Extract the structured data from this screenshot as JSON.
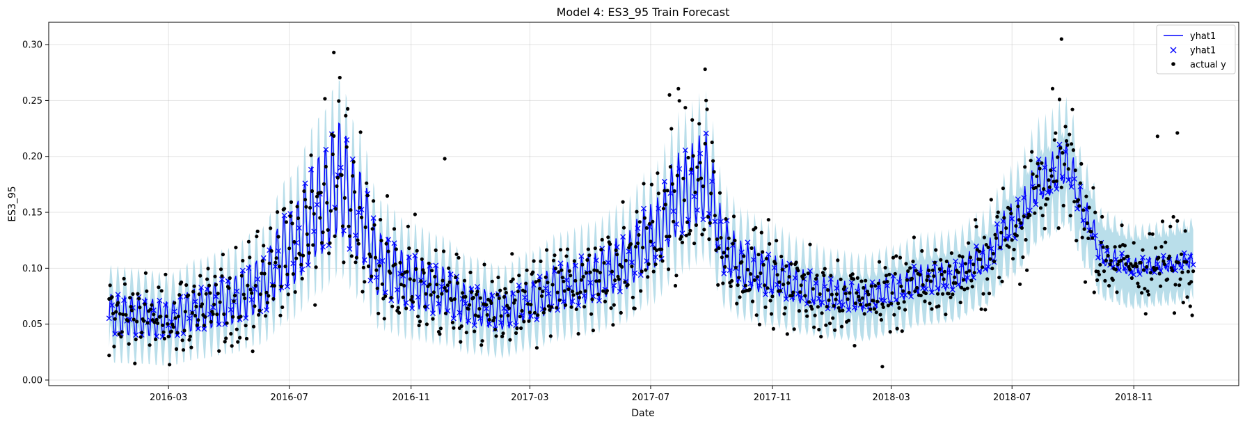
{
  "chart_data": {
    "type": "line",
    "title": "Model 4: ES3_95 Train Forecast",
    "xlabel": "Date",
    "ylabel": "ES3_95",
    "x_range": [
      "2015-11-01",
      "2019-02-15"
    ],
    "ylim": [
      -0.005,
      0.32
    ],
    "x_ticks": [
      "2016-03",
      "2016-07",
      "2016-11",
      "2017-03",
      "2017-07",
      "2017-11",
      "2018-03",
      "2018-07",
      "2018-11"
    ],
    "y_ticks": [
      "0.00",
      "0.05",
      "0.10",
      "0.15",
      "0.20",
      "0.25",
      "0.30"
    ],
    "grid": true,
    "legend_position": "top-right",
    "legend": [
      "yhat1",
      "yhat1",
      "actual y"
    ],
    "series_colors": {
      "yhat1": "#0000ff",
      "band": "#add8e6",
      "actual": "#000000"
    },
    "series": [
      {
        "name": "yhat1",
        "style": "line"
      },
      {
        "name": "yhat1",
        "style": "x-markers"
      },
      {
        "name": "actual y",
        "style": "dots"
      }
    ],
    "forecast_anchors": [
      [
        "2016-01-01",
        0.06
      ],
      [
        "2016-02-01",
        0.058
      ],
      [
        "2016-03-01",
        0.055
      ],
      [
        "2016-04-01",
        0.065
      ],
      [
        "2016-05-01",
        0.072
      ],
      [
        "2016-06-01",
        0.085
      ],
      [
        "2016-07-01",
        0.12
      ],
      [
        "2016-08-01",
        0.16
      ],
      [
        "2016-08-20",
        0.185
      ],
      [
        "2016-09-10",
        0.15
      ],
      [
        "2016-10-01",
        0.105
      ],
      [
        "2016-11-01",
        0.09
      ],
      [
        "2016-12-01",
        0.082
      ],
      [
        "2017-01-01",
        0.068
      ],
      [
        "2017-02-01",
        0.062
      ],
      [
        "2017-03-01",
        0.072
      ],
      [
        "2017-04-01",
        0.085
      ],
      [
        "2017-05-01",
        0.092
      ],
      [
        "2017-06-01",
        0.105
      ],
      [
        "2017-07-01",
        0.13
      ],
      [
        "2017-08-01",
        0.17
      ],
      [
        "2017-08-25",
        0.185
      ],
      [
        "2017-09-15",
        0.12
      ],
      [
        "2017-10-01",
        0.105
      ],
      [
        "2017-11-01",
        0.095
      ],
      [
        "2017-12-01",
        0.085
      ],
      [
        "2018-01-01",
        0.078
      ],
      [
        "2018-02-01",
        0.075
      ],
      [
        "2018-03-01",
        0.082
      ],
      [
        "2018-04-01",
        0.092
      ],
      [
        "2018-05-01",
        0.095
      ],
      [
        "2018-06-01",
        0.11
      ],
      [
        "2018-07-01",
        0.145
      ],
      [
        "2018-08-01",
        0.185
      ],
      [
        "2018-08-25",
        0.2
      ],
      [
        "2018-09-15",
        0.15
      ],
      [
        "2018-10-01",
        0.115
      ],
      [
        "2018-11-01",
        0.105
      ],
      [
        "2018-12-01",
        0.108
      ],
      [
        "2018-12-31",
        0.112
      ]
    ],
    "notable_actual_points": [
      [
        "2016-01-01",
        0.022
      ],
      [
        "2016-08-15",
        0.293
      ],
      [
        "2016-12-05",
        0.198
      ],
      [
        "2017-07-20",
        0.255
      ],
      [
        "2017-08-25",
        0.278
      ],
      [
        "2018-02-20",
        0.012
      ],
      [
        "2018-08-20",
        0.305
      ],
      [
        "2018-11-25",
        0.218
      ],
      [
        "2018-12-15",
        0.221
      ]
    ]
  }
}
